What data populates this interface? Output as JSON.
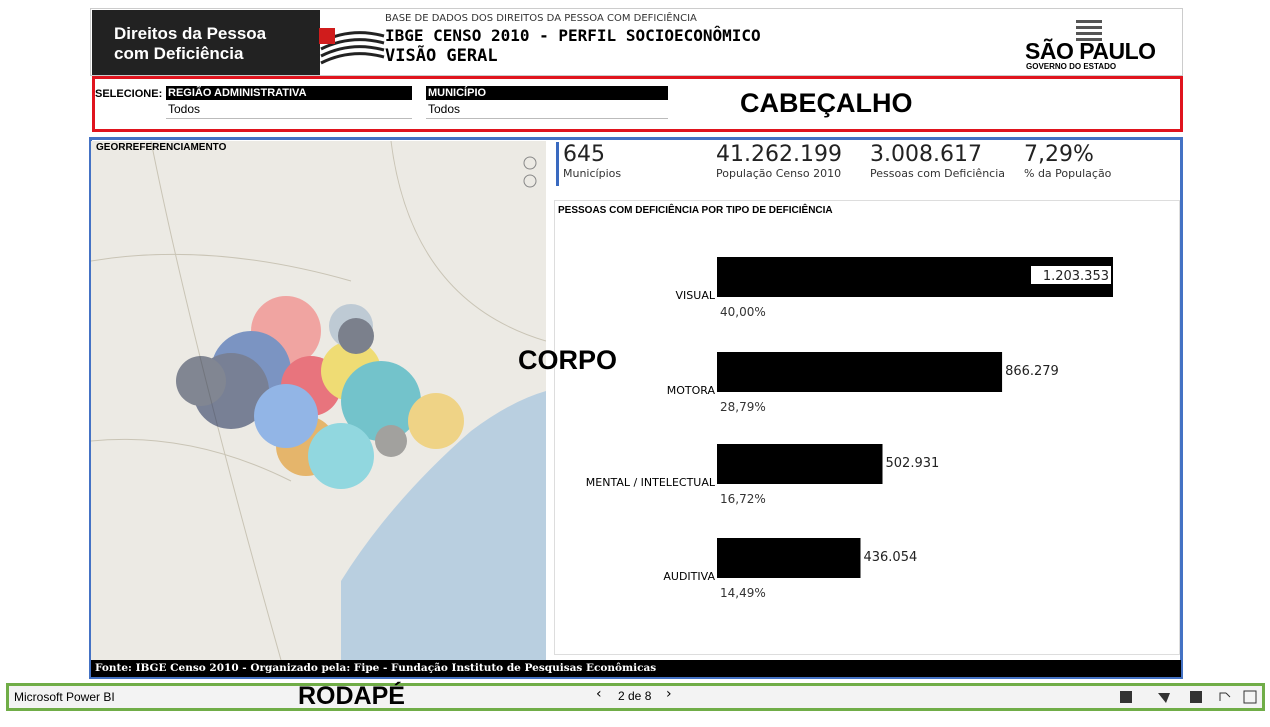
{
  "header": {
    "brand": [
      "Direitos da Pessoa",
      "com Deficiência"
    ],
    "supertitle": "BASE DE DADOS DOS DIREITOS DA PESSOA COM DEFICIÊNCIA",
    "title": "IBGE CENSO 2010 -  PERFIL SOCIOECONÔMICO",
    "subtitle": "VISÃO GERAL",
    "logo": [
      "SÃO PAULO",
      "GOVERNO DO ESTADO"
    ]
  },
  "filters": {
    "label": "SELECIONE:",
    "items": [
      {
        "label": "REGIÃO ADMINISTRATIVA",
        "value": "Todos"
      },
      {
        "label": "MUNICÍPIO",
        "value": "Todos"
      }
    ]
  },
  "annotations": {
    "header": "CABEÇALHO",
    "body": "CORPO",
    "footer": "RODAPÉ"
  },
  "map": {
    "title": "GEORREFERENCIAMENTO"
  },
  "kpis": [
    {
      "value": "645",
      "label": "Municípios"
    },
    {
      "value": "41.262.199",
      "label": "População Censo 2010"
    },
    {
      "value": "3.008.617",
      "label": "Pessoas com Deficiência"
    },
    {
      "value": "7,29%",
      "label": "% da População"
    }
  ],
  "chart_data": {
    "type": "bar",
    "orientation": "horizontal",
    "title": "PESSOAS COM DEFICIÊNCIA POR TIPO DE DEFICIÊNCIA",
    "categories": [
      "VISUAL",
      "MOTORA",
      "MENTAL / INTELECTUAL",
      "AUDITIVA"
    ],
    "values": [
      1203353,
      866279,
      502931,
      436054
    ],
    "value_labels": [
      "1.203.353",
      "866.279",
      "502.931",
      "436.054"
    ],
    "percent_labels": [
      "40,00%",
      "28,79%",
      "16,72%",
      "14,49%"
    ],
    "color": "#000000"
  },
  "source": "Fonte: IBGE Censo 2010 - Organizado pela: Fipe - Fundação Instituto de Pesquisas Econômicas",
  "footer": {
    "app": "Microsoft Power BI",
    "page": "2 de 8"
  }
}
